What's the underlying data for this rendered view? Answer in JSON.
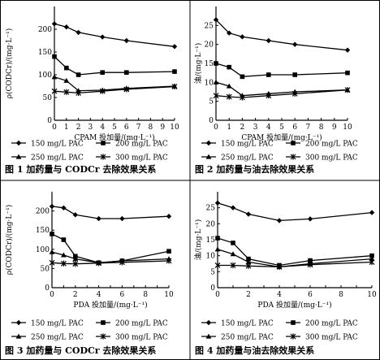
{
  "legend_labels": [
    "150 mg/L PAC",
    "200 mg/L PAC",
    "250 mg/L PAC",
    "300 mg/L PAC"
  ],
  "captions": [
    "图 1   加药量与 CODCr 去除效果关系",
    "图 2   加药量与油去除效果关系",
    "图 3   加药量与 CODCr 去除效果关系",
    "图 4   加药量与油去除效果关系"
  ],
  "chart_data": [
    {
      "type": "line",
      "ylabel": "ρ(CODCr)/(mg·L⁻¹)",
      "xlabel": "CPAM 投加量/(mg·L⁻¹)",
      "x": [
        0,
        1,
        2,
        4,
        6,
        10
      ],
      "xticks": [
        0,
        1,
        2,
        3,
        4,
        5,
        6,
        7,
        8,
        9,
        10
      ],
      "xlim": [
        0,
        10
      ],
      "yticks": [
        0,
        50,
        100,
        150,
        200
      ],
      "ylim": [
        0,
        250
      ],
      "series": [
        {
          "name": "150 mg/L PAC",
          "marker": "diamond",
          "values": [
            212,
            205,
            193,
            183,
            175,
            162
          ]
        },
        {
          "name": "200 mg/L PAC",
          "marker": "square",
          "values": [
            140,
            115,
            100,
            105,
            105,
            107
          ]
        },
        {
          "name": "250 mg/L PAC",
          "marker": "triangle",
          "values": [
            95,
            87,
            65,
            66,
            70,
            75
          ]
        },
        {
          "name": "300 mg/L PAC",
          "marker": "cross",
          "values": [
            64,
            62,
            60,
            64,
            68,
            74
          ]
        }
      ]
    },
    {
      "type": "line",
      "ylabel": "油/(mg·L⁻¹)",
      "xlabel": "CPAM 投加量/(mg·L⁻¹)",
      "x": [
        0,
        1,
        2,
        4,
        6,
        10
      ],
      "xticks": [
        0,
        1,
        2,
        3,
        4,
        5,
        6,
        7,
        8,
        9,
        10
      ],
      "xlim": [
        0,
        10
      ],
      "yticks": [
        0,
        5,
        10,
        15,
        20,
        25
      ],
      "ylim": [
        0,
        30
      ],
      "series": [
        {
          "name": "150 mg/L PAC",
          "marker": "diamond",
          "values": [
            26.5,
            23,
            22,
            21,
            20,
            18.5
          ]
        },
        {
          "name": "200 mg/L PAC",
          "marker": "square",
          "values": [
            15,
            14,
            11.5,
            12,
            12,
            12.5
          ]
        },
        {
          "name": "250 mg/L PAC",
          "marker": "triangle",
          "values": [
            10,
            9,
            6.5,
            7,
            7.5,
            8
          ]
        },
        {
          "name": "300 mg/L PAC",
          "marker": "cross",
          "values": [
            6.5,
            6.2,
            6,
            6.5,
            7,
            8
          ]
        }
      ]
    },
    {
      "type": "line",
      "ylabel": "ρ(CODCr)/(mg·L⁻¹)",
      "xlabel": "PDA 投加量/(mg·L⁻¹)",
      "x": [
        0,
        1,
        2,
        4,
        6,
        10
      ],
      "xticks": [
        0,
        1,
        2,
        3,
        4,
        5,
        6,
        7,
        8,
        9,
        10
      ],
      "xlim": [
        0,
        10
      ],
      "yticks": [
        0,
        50,
        100,
        150,
        200
      ],
      "ylim": [
        0,
        250
      ],
      "series": [
        {
          "name": "150 mg/L PAC",
          "marker": "diamond",
          "values": [
            212,
            208,
            190,
            180,
            180,
            186
          ]
        },
        {
          "name": "200 mg/L PAC",
          "marker": "square",
          "values": [
            140,
            125,
            82,
            65,
            70,
            95
          ]
        },
        {
          "name": "250 mg/L PAC",
          "marker": "triangle",
          "values": [
            93,
            85,
            75,
            65,
            70,
            75
          ]
        },
        {
          "name": "300 mg/L PAC",
          "marker": "cross",
          "values": [
            65,
            63,
            62,
            64,
            66,
            70
          ]
        }
      ]
    },
    {
      "type": "line",
      "ylabel": "油/(mg·L⁻¹)",
      "xlabel": "PDA 投加量/(mg·L⁻¹)",
      "x": [
        0,
        1,
        2,
        4,
        6,
        10
      ],
      "xticks": [
        0,
        1,
        2,
        3,
        4,
        5,
        6,
        7,
        8,
        9,
        10
      ],
      "xlim": [
        0,
        10
      ],
      "yticks": [
        0,
        5,
        10,
        15,
        20,
        25
      ],
      "ylim": [
        0,
        30
      ],
      "series": [
        {
          "name": "150 mg/L PAC",
          "marker": "diamond",
          "values": [
            26.5,
            25,
            23,
            21,
            21.5,
            23.5
          ]
        },
        {
          "name": "200 mg/L PAC",
          "marker": "square",
          "values": [
            15.5,
            14,
            9,
            7,
            8.5,
            10
          ]
        },
        {
          "name": "250 mg/L PAC",
          "marker": "triangle",
          "values": [
            12,
            10.5,
            8,
            6.5,
            7.5,
            9
          ]
        },
        {
          "name": "300 mg/L PAC",
          "marker": "cross",
          "values": [
            7,
            7,
            6.8,
            6.5,
            7.2,
            8
          ]
        }
      ]
    }
  ]
}
